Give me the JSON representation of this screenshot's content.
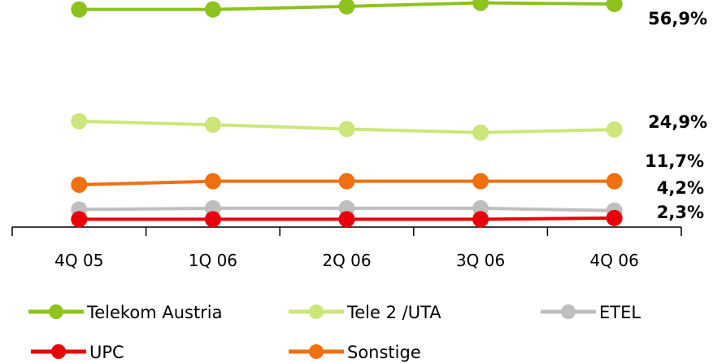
{
  "chart_data": {
    "type": "line",
    "categories": [
      "4Q 05",
      "1Q 06",
      "2Q 06",
      "3Q 06",
      "4Q 06"
    ],
    "series": [
      {
        "name": "Telekom Austria",
        "color": "#8dc21f",
        "values": [
          55.5,
          55.5,
          56.3,
          57.2,
          56.9
        ],
        "end_label": "56,9%"
      },
      {
        "name": "Tele 2 /UTA",
        "color": "#cce67a",
        "values": [
          27.0,
          26.1,
          25.0,
          24.1,
          24.9
        ],
        "end_label": "24,9%"
      },
      {
        "name": "ETEL",
        "color": "#bfbfbf",
        "values": [
          4.5,
          4.8,
          4.8,
          4.8,
          4.2
        ],
        "end_label": "4,2%"
      },
      {
        "name": "UPC",
        "color": "#e8000a",
        "values": [
          2.0,
          2.0,
          2.0,
          2.0,
          2.3
        ],
        "end_label": "2,3%"
      },
      {
        "name": "Sonstige",
        "color": "#f07010",
        "values": [
          10.8,
          11.7,
          11.7,
          11.7,
          11.7
        ],
        "end_label": "11,7%"
      }
    ],
    "ylim": [
      0,
      60
    ],
    "grid": false,
    "legend_placement": "bottom"
  }
}
